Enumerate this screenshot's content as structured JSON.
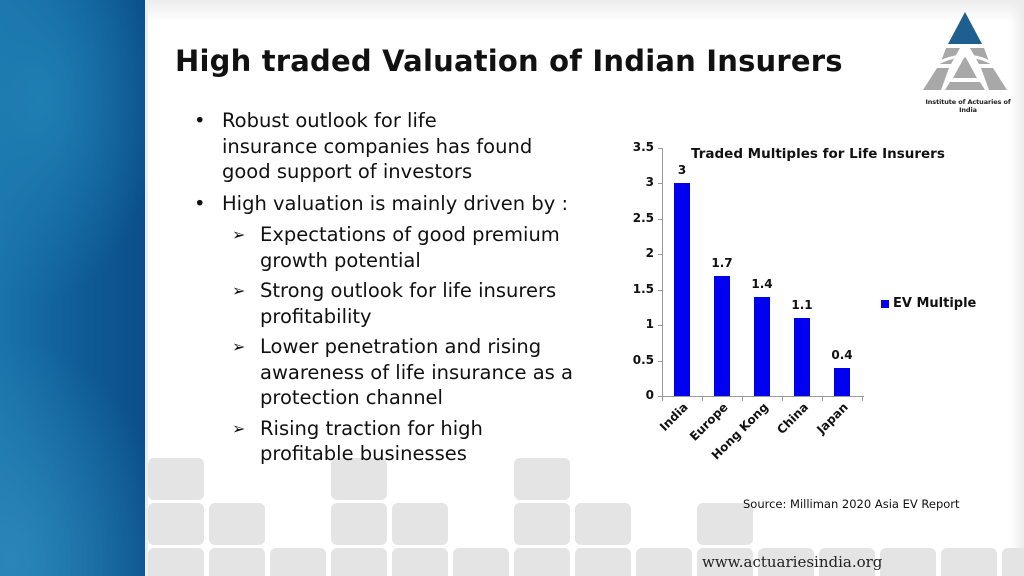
{
  "slide": {
    "title": "High traded Valuation of Indian Insurers",
    "logo": {
      "icon": "institute-of-actuaries-logo-icon",
      "caption": "Institute of Actuaries of India",
      "triangle_color": "#1f5f8f",
      "segment_color": "#a8a8a8"
    },
    "bullets": [
      {
        "level": 1,
        "marker": "•",
        "text": "Robust outlook for life insurance companies has found good support of investors",
        "lines": [
          "Robust outlook for life",
          "insurance companies has found",
          "good support of investors"
        ]
      },
      {
        "level": 1,
        "marker": "•",
        "text": "High valuation is mainly driven by :",
        "lines": [
          "High valuation is mainly driven by :"
        ]
      },
      {
        "level": 2,
        "marker": "➢",
        "text": "Expectations of good premium growth potential",
        "lines": [
          "Expectations of good premium",
          "growth potential"
        ]
      },
      {
        "level": 2,
        "marker": "➢",
        "text": "Strong outlook for life insurers profitability",
        "lines": [
          "Strong outlook for life insurers",
          "profitability"
        ]
      },
      {
        "level": 2,
        "marker": "➢",
        "text": "Lower penetration and rising awareness of life insurance as a protection channel",
        "lines": [
          "Lower penetration and rising",
          "awareness of life insurance as a",
          "protection channel"
        ]
      },
      {
        "level": 2,
        "marker": "➢",
        "text": "Rising traction for high profitable businesses",
        "lines": [
          "Rising traction for high",
          "profitable businesses"
        ]
      }
    ],
    "source": "Source: Milliman 2020 Asia EV Report",
    "footer_url": "www.actuariesindia.org",
    "colors": {
      "sidebar": "#0f5c97",
      "bar": "#0000f0",
      "tile": "#e4e4e4"
    }
  },
  "chart_data": {
    "type": "bar",
    "title": "Traded Multiples for Life Insurers",
    "categories": [
      "India",
      "Europe",
      "Hong Kong",
      "China",
      "Japan"
    ],
    "series": [
      {
        "name": "EV Multiple",
        "values": [
          3,
          1.7,
          1.4,
          1.1,
          0.4
        ],
        "color": "#0000f0"
      }
    ],
    "value_labels": [
      "3",
      "1.7",
      "1.4",
      "1.1",
      "0.4"
    ],
    "y_ticks": [
      "0",
      "0.5",
      "1",
      "1.5",
      "2",
      "2.5",
      "3",
      "3.5"
    ],
    "xlabel": "",
    "ylabel": "",
    "ylim": [
      0,
      3.5
    ],
    "grid": false,
    "legend_position": "right",
    "x_label_rotation": -45
  }
}
